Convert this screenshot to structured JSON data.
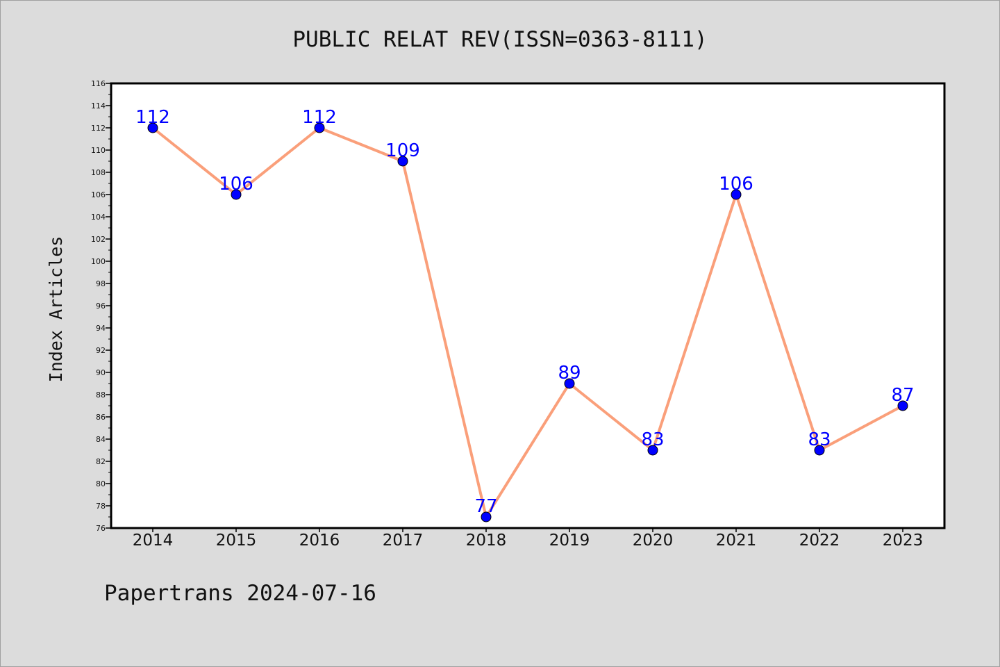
{
  "chart_data": {
    "type": "line",
    "title": "PUBLIC RELAT REV(ISSN=0363-8111)",
    "xlabel": "",
    "ylabel": "Index Articles",
    "categories": [
      "2014",
      "2015",
      "2016",
      "2017",
      "2018",
      "2019",
      "2020",
      "2021",
      "2022",
      "2023"
    ],
    "series": [
      {
        "values": [
          112,
          106,
          112,
          109,
          77,
          89,
          83,
          106,
          83,
          87
        ]
      }
    ],
    "ylim": [
      76,
      116
    ],
    "ytick_step": 2,
    "grid": false,
    "legend": "none",
    "data_labels": true
  },
  "footer": "Papertrans 2024-07-16",
  "colors": {
    "background": "#dcdcdc",
    "plot_background": "#ffffff",
    "line": "#fa9f7a",
    "marker": "#0000ff",
    "data_label": "#0000ff",
    "axis": "#000000"
  }
}
